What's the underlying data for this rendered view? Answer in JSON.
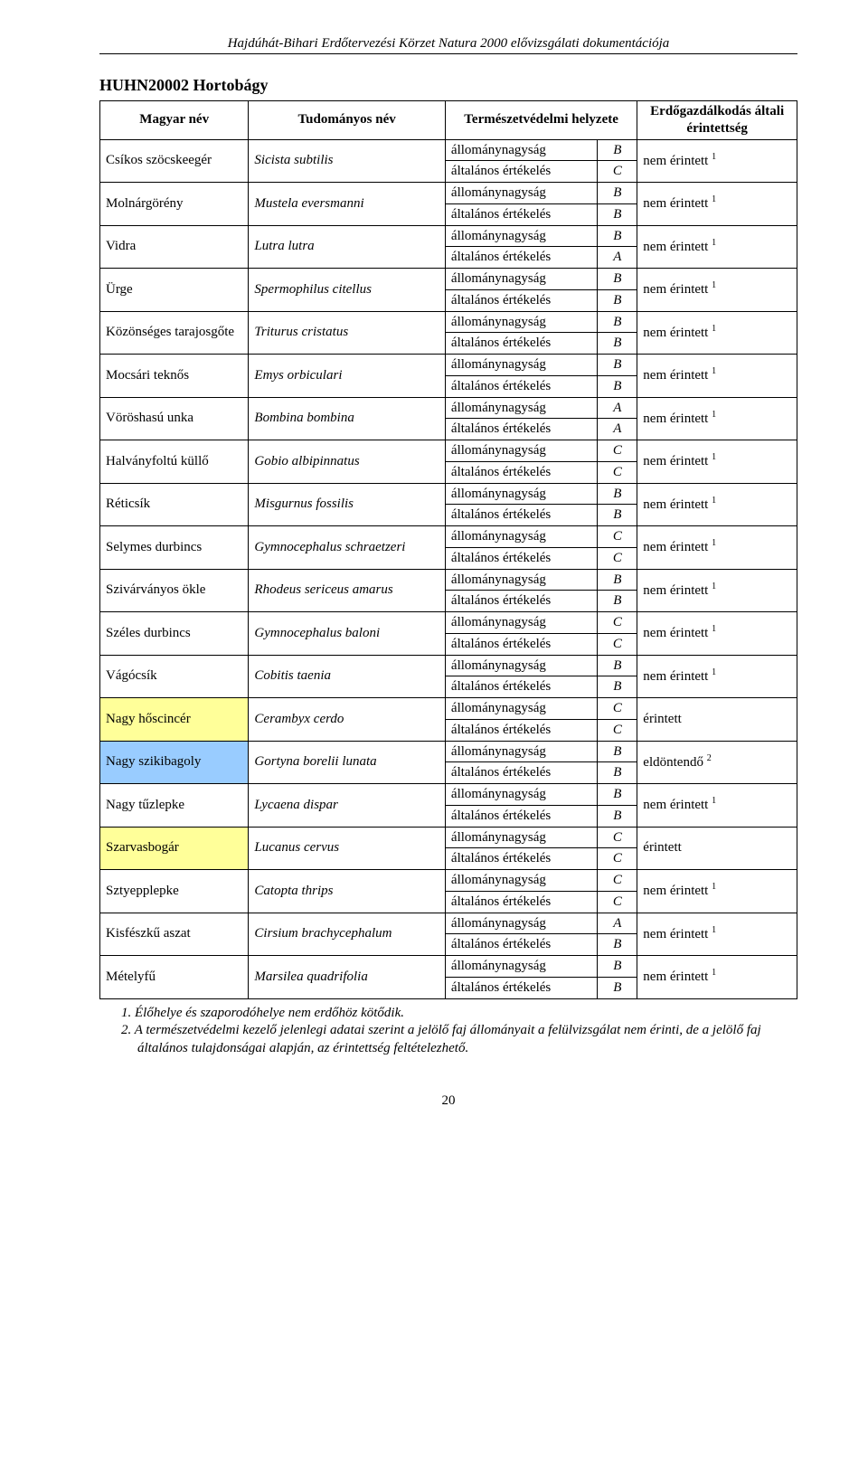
{
  "doc_header": "Hajdúhát-Bihari Erdőtervezési Körzet Natura 2000 elővizsgálati dokumentációja",
  "section_title": "HUHN20002 Hortobágy",
  "headers": {
    "hu": "Magyar név",
    "sci": "Tudományos név",
    "status": "Természetvédelmi helyzete",
    "impact": "Erdőgazdálkodás általi érintettség"
  },
  "metric_labels": {
    "pop": "állománynagyság",
    "gen": "általános értékelés"
  },
  "impact_text": {
    "nem1": "nem érintett",
    "erintett": "érintett",
    "eldontendo2": "eldöntendő"
  },
  "superscripts": {
    "one": "1",
    "two": "2"
  },
  "species": [
    {
      "hu": "Csíkos szöcskeegér",
      "sci": "Sicista subtilis",
      "pop": "B",
      "gen": "C",
      "impact": "nem1",
      "hl": ""
    },
    {
      "hu": "Molnárgörény",
      "sci": "Mustela eversmanni",
      "pop": "B",
      "gen": "B",
      "impact": "nem1",
      "hl": ""
    },
    {
      "hu": "Vidra",
      "sci": "Lutra lutra",
      "pop": "B",
      "gen": "A",
      "impact": "nem1",
      "hl": ""
    },
    {
      "hu": "Ürge",
      "sci": "Spermophilus citellus",
      "pop": "B",
      "gen": "B",
      "impact": "nem1",
      "hl": ""
    },
    {
      "hu": "Közönséges tarajosgőte",
      "sci": "Triturus cristatus",
      "pop": "B",
      "gen": "B",
      "impact": "nem1",
      "hl": ""
    },
    {
      "hu": "Mocsári teknős",
      "sci": "Emys orbiculari",
      "pop": "B",
      "gen": "B",
      "impact": "nem1",
      "hl": ""
    },
    {
      "hu": "Vöröshasú unka",
      "sci": "Bombina bombina",
      "pop": "A",
      "gen": "A",
      "impact": "nem1",
      "hl": ""
    },
    {
      "hu": "Halványfoltú küllő",
      "sci": "Gobio albipinnatus",
      "pop": "C",
      "gen": "C",
      "impact": "nem1",
      "hl": ""
    },
    {
      "hu": "Réticsík",
      "sci": "Misgurnus fossilis",
      "pop": "B",
      "gen": "B",
      "impact": "nem1",
      "hl": ""
    },
    {
      "hu": "Selymes durbincs",
      "sci": "Gymnocephalus schraetzeri",
      "pop": "C",
      "gen": "C",
      "impact": "nem1",
      "hl": ""
    },
    {
      "hu": "Szivárványos ökle",
      "sci": "Rhodeus sericeus amarus",
      "pop": "B",
      "gen": "B",
      "impact": "nem1",
      "hl": ""
    },
    {
      "hu": "Széles durbincs",
      "sci": "Gymnocephalus baloni",
      "pop": "C",
      "gen": "C",
      "impact": "nem1",
      "hl": ""
    },
    {
      "hu": "Vágócsík",
      "sci": "Cobitis taenia",
      "pop": "B",
      "gen": "B",
      "impact": "nem1",
      "hl": ""
    },
    {
      "hu": "Nagy hőscincér",
      "sci": "Cerambyx cerdo",
      "pop": "C",
      "gen": "C",
      "impact": "erintett",
      "hl": "yellow"
    },
    {
      "hu": "Nagy szikibagoly",
      "sci": "Gortyna borelii lunata",
      "pop": "B",
      "gen": "B",
      "impact": "eldontendo2",
      "hl": "blue"
    },
    {
      "hu": "Nagy tűzlepke",
      "sci": "Lycaena dispar",
      "pop": "B",
      "gen": "B",
      "impact": "nem1",
      "hl": ""
    },
    {
      "hu": "Szarvasbogár",
      "sci": "Lucanus cervus",
      "pop": "C",
      "gen": "C",
      "impact": "erintett",
      "hl": "yellow"
    },
    {
      "hu": "Sztyepplepke",
      "sci": "Catopta thrips",
      "pop": "C",
      "gen": "C",
      "impact": "nem1",
      "hl": ""
    },
    {
      "hu": "Kisfészkű aszat",
      "sci": "Cirsium brachycephalum",
      "pop": "A",
      "gen": "B",
      "impact": "nem1",
      "hl": ""
    },
    {
      "hu": "Mételyfű",
      "sci": "Marsilea quadrifolia",
      "pop": "B",
      "gen": "B",
      "impact": "nem1",
      "hl": ""
    }
  ],
  "footnotes": {
    "f1": "1. Élőhelye és szaporodóhelye nem erdőhöz kötődik.",
    "f2": "2. A természetvédelmi kezelő jelenlegi adatai szerint a jelölő faj állományait a felülvizsgálat nem érinti, de a jelölő faj általános tulajdonságai alapján, az érintettség feltételezhető."
  },
  "page_number": "20"
}
